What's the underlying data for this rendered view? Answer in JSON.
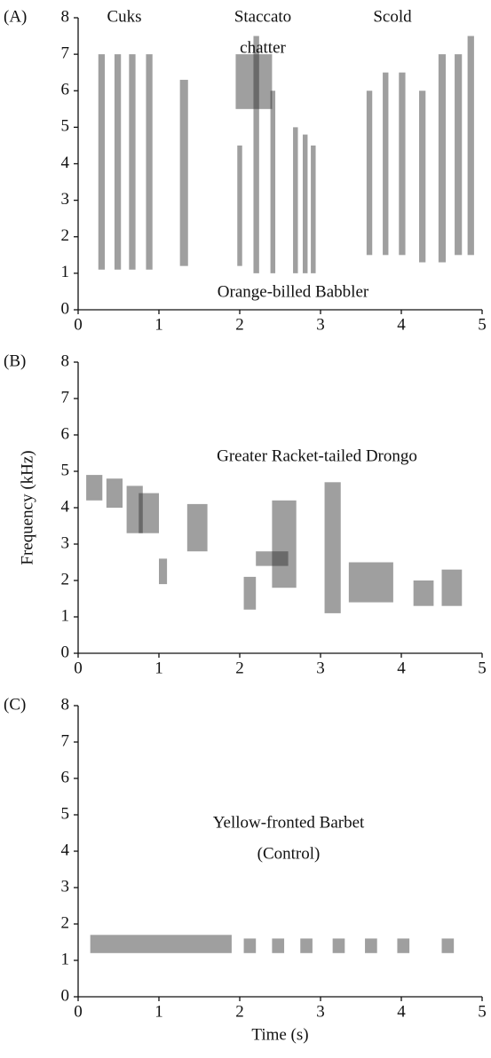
{
  "chart_data": [
    {
      "type": "spectrogram",
      "panel_label": "(A)",
      "color": "#2a2a2a",
      "annotations": [
        [
          "Cuks"
        ],
        [
          "Staccato",
          "chatter"
        ],
        [
          "Scold"
        ],
        [
          "Orange-billed Babbler"
        ]
      ],
      "xlim": [
        0,
        5
      ],
      "ylim": [
        0,
        8
      ],
      "xticks": [
        0,
        1,
        2,
        3,
        4,
        5
      ],
      "yticks": [
        0,
        1,
        2,
        3,
        4,
        5,
        6,
        7,
        8
      ],
      "syllables": [
        {
          "t": [
            0.25,
            0.33
          ],
          "f": [
            1.1,
            7
          ]
        },
        {
          "t": [
            0.45,
            0.53
          ],
          "f": [
            1.1,
            7
          ]
        },
        {
          "t": [
            0.63,
            0.71
          ],
          "f": [
            1.1,
            7
          ]
        },
        {
          "t": [
            0.84,
            0.92
          ],
          "f": [
            1.1,
            7
          ]
        },
        {
          "t": [
            1.26,
            1.36
          ],
          "f": [
            1.2,
            6.3
          ]
        },
        {
          "t": [
            1.95,
            2.4
          ],
          "f": [
            5.5,
            7
          ]
        },
        {
          "t": [
            1.97,
            2.03
          ],
          "f": [
            1.2,
            4.5
          ]
        },
        {
          "t": [
            2.17,
            2.24
          ],
          "f": [
            1,
            7.5
          ]
        },
        {
          "t": [
            2.38,
            2.44
          ],
          "f": [
            1,
            6
          ]
        },
        {
          "t": [
            2.66,
            2.72
          ],
          "f": [
            1,
            5
          ]
        },
        {
          "t": [
            2.78,
            2.84
          ],
          "f": [
            1,
            4.8
          ]
        },
        {
          "t": [
            2.88,
            2.94
          ],
          "f": [
            1,
            4.5
          ]
        },
        {
          "t": [
            3.57,
            3.64
          ],
          "f": [
            1.5,
            6
          ]
        },
        {
          "t": [
            3.77,
            3.84
          ],
          "f": [
            1.5,
            6.5
          ]
        },
        {
          "t": [
            3.97,
            4.05
          ],
          "f": [
            1.5,
            6.5
          ]
        },
        {
          "t": [
            4.22,
            4.3
          ],
          "f": [
            1.3,
            6
          ]
        },
        {
          "t": [
            4.46,
            4.55
          ],
          "f": [
            1.3,
            7
          ]
        },
        {
          "t": [
            4.66,
            4.75
          ],
          "f": [
            1.5,
            7
          ]
        },
        {
          "t": [
            4.82,
            4.9
          ],
          "f": [
            1.5,
            7.5
          ]
        }
      ]
    },
    {
      "type": "spectrogram",
      "panel_label": "(B)",
      "color": "#2a2a2a",
      "annotations": [
        [
          "Greater Racket-tailed Drongo"
        ]
      ],
      "y_label": "Frequency (kHz)",
      "xlim": [
        0,
        5
      ],
      "ylim": [
        0,
        8
      ],
      "xticks": [
        0,
        1,
        2,
        3,
        4,
        5
      ],
      "yticks": [
        0,
        1,
        2,
        3,
        4,
        5,
        6,
        7,
        8
      ],
      "syllables": [
        {
          "t": [
            0.1,
            0.3
          ],
          "f": [
            4.2,
            4.9
          ]
        },
        {
          "t": [
            0.35,
            0.55
          ],
          "f": [
            4,
            4.8
          ]
        },
        {
          "t": [
            0.6,
            0.8
          ],
          "f": [
            3.3,
            4.6
          ]
        },
        {
          "t": [
            0.75,
            1
          ],
          "f": [
            3.3,
            4.4
          ]
        },
        {
          "t": [
            1,
            1.1
          ],
          "f": [
            1.9,
            2.6
          ]
        },
        {
          "t": [
            1.35,
            1.6
          ],
          "f": [
            2.8,
            4.1
          ]
        },
        {
          "t": [
            2.05,
            2.2
          ],
          "f": [
            1.2,
            2.1
          ]
        },
        {
          "t": [
            2.2,
            2.6
          ],
          "f": [
            2.4,
            2.8
          ]
        },
        {
          "t": [
            2.4,
            2.7
          ],
          "f": [
            1.8,
            4.2
          ]
        },
        {
          "t": [
            3.05,
            3.25
          ],
          "f": [
            1.1,
            4.7
          ]
        },
        {
          "t": [
            3.35,
            3.9
          ],
          "f": [
            1.4,
            2.5
          ]
        },
        {
          "t": [
            4.15,
            4.4
          ],
          "f": [
            1.3,
            2
          ]
        },
        {
          "t": [
            4.5,
            4.75
          ],
          "f": [
            1.3,
            2.3
          ]
        }
      ]
    },
    {
      "type": "spectrogram",
      "panel_label": "(C)",
      "color": "#2a2a2a",
      "annotations": [
        [
          "Yellow-fronted Barbet",
          "(Control)"
        ]
      ],
      "x_label": "Time (s)",
      "xlim": [
        0,
        5
      ],
      "ylim": [
        0,
        8
      ],
      "xticks": [
        0,
        1,
        2,
        3,
        4,
        5
      ],
      "yticks": [
        0,
        1,
        2,
        3,
        4,
        5,
        6,
        7,
        8
      ],
      "syllables": [
        {
          "t": [
            0.15,
            1.9
          ],
          "f": [
            1.2,
            1.7
          ]
        },
        {
          "t": [
            2.05,
            2.2
          ],
          "f": [
            1.2,
            1.6
          ]
        },
        {
          "t": [
            2.4,
            2.55
          ],
          "f": [
            1.2,
            1.6
          ]
        },
        {
          "t": [
            2.75,
            2.9
          ],
          "f": [
            1.2,
            1.6
          ]
        },
        {
          "t": [
            3.15,
            3.3
          ],
          "f": [
            1.2,
            1.6
          ]
        },
        {
          "t": [
            3.55,
            3.7
          ],
          "f": [
            1.2,
            1.6
          ]
        },
        {
          "t": [
            3.95,
            4.1
          ],
          "f": [
            1.2,
            1.6
          ]
        },
        {
          "t": [
            4.5,
            4.65
          ],
          "f": [
            1.2,
            1.6
          ]
        }
      ]
    }
  ]
}
